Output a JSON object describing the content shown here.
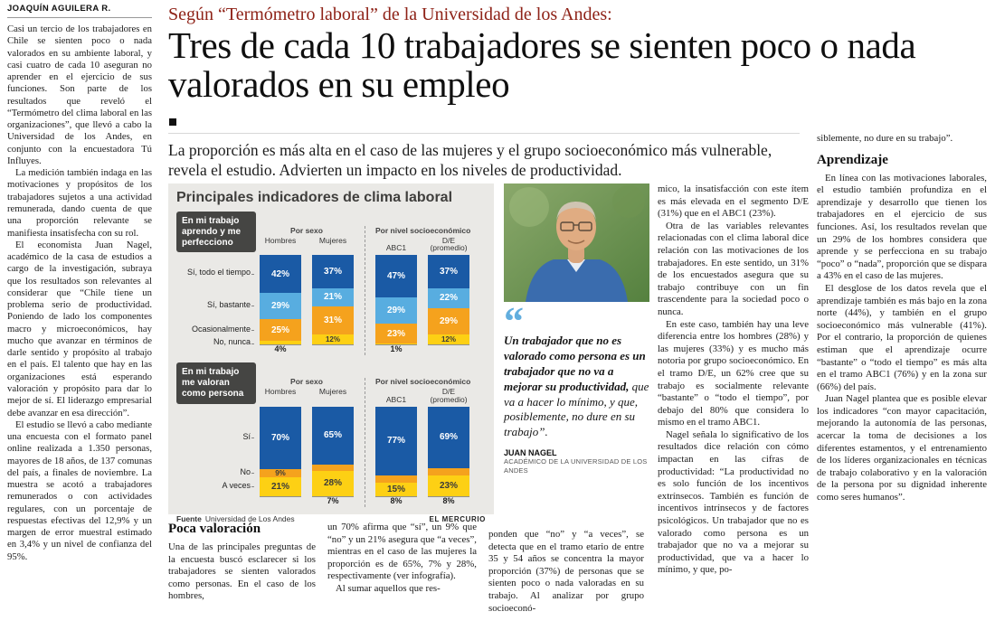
{
  "masthead": {
    "byline": "JOAQUÍN AGUILERA R."
  },
  "header": {
    "kicker": "Según “Termómetro laboral” de la Universidad de los Andes:",
    "headline": "Tres de cada 10 trabajadores se sienten poco o nada valorados en su empleo",
    "subhead": "La proporción es más alta en el caso de las mujeres y el grupo socioeconómico más vulnerable, revela el estudio. Advierten un impacto en los niveles de productividad."
  },
  "left_column": {
    "paragraphs": [
      "Casi un tercio de los trabajadores en Chile se sienten poco o nada valorados en su ambiente laboral, y casi cuatro de cada 10 aseguran no aprender en el ejercicio de sus funciones. Son parte de los resultados que reveló el “Termómetro del clima laboral en las organizaciones”, que llevó a cabo la Universidad de los Andes, en conjunto con la encuestadora Tú Influyes.",
      "La medición también indaga en las motivaciones y propósitos de los trabajadores sujetos a una actividad remunerada, dando cuenta de que una proporción relevante se manifiesta insatisfecha con su rol.",
      "El economista Juan Nagel, académico de la casa de estudios a cargo de la investigación, subraya que los resultados son relevantes al considerar que “Chile tiene un problema serio de productividad. Poniendo de lado los componentes macro y microeconómicos, hay mucho que avanzar en términos de darle sentido y propósito al trabajo en el país. El talento que hay en las organizaciones está esperando valoración y propósito para dar lo mejor de sí. El liderazgo empresarial debe avanzar en esa dirección”.",
      "El estudio se llevó a cabo mediante una encuesta con el formato panel online realizada a 1.350 personas, mayores de 18 años, de 137 comunas del país, a finales de noviembre. La muestra se acotó a trabajadores remunerados o con actividades regulares, con un porcentaje de respuestas efectivas del 12,9% y un margen de error muestral estimado en 3,4% y un nivel de confianza del 95%."
    ]
  },
  "chart_data": {
    "type": "stacked-bar",
    "unit": "%",
    "title": "Principales indicadores de clima laboral",
    "source_label": "Fuente",
    "source": "Universidad de Los Andes",
    "credit": "EL MERCURIO",
    "super_columns": [
      "Por sexo",
      "Por nivel socioeconómico"
    ],
    "bar_columns": [
      [
        "Hombres",
        "Mujeres"
      ],
      [
        "ABC1",
        "D/E (promedio)"
      ]
    ],
    "groups": [
      {
        "header": "En mi trabajo aprendo y me perfecciono",
        "categories": [
          "Sí, todo el tiempo",
          "Sí, bastante",
          "Ocasionalmente",
          "No, nunca"
        ],
        "colors": [
          "#1a5aa5",
          "#58ade0",
          "#f5a21d",
          "#fdd014"
        ],
        "label_colors": [
          "#ffffff",
          "#ffffff",
          "#ffffff",
          "#3a3a3a"
        ],
        "series": [
          {
            "name": "Hombres",
            "values": [
              42,
              29,
              25,
              4
            ]
          },
          {
            "name": "Mujeres",
            "values": [
              37,
              21,
              31,
              12
            ]
          },
          {
            "name": "ABC1",
            "values": [
              47,
              29,
              23,
              1
            ]
          },
          {
            "name": "D/E (promedio)",
            "values": [
              37,
              22,
              29,
              12
            ]
          }
        ]
      },
      {
        "header": "En mi trabajo me valoran como persona",
        "categories": [
          "Sí",
          "No",
          "A veces"
        ],
        "colors": [
          "#1a5aa5",
          "#f5a21d",
          "#fdd014"
        ],
        "label_colors": [
          "#ffffff",
          "#3a3a3a",
          "#3a3a3a"
        ],
        "series": [
          {
            "name": "Hombres",
            "values": [
              70,
              9,
              21
            ]
          },
          {
            "name": "Mujeres",
            "values": [
              65,
              7,
              28
            ]
          },
          {
            "name": "ABC1",
            "values": [
              77,
              8,
              15
            ]
          },
          {
            "name": "D/E (promedio)",
            "values": [
              69,
              8,
              23
            ]
          }
        ]
      }
    ]
  },
  "quote": {
    "mark": "“",
    "bold_text": "Un trabajador que no es valorado como persona es un trabajador que no va a mejorar su productividad,",
    "regular_text": " que va a hacer lo mínimo, y que, posiblemente, no dure en su trabajo”.",
    "author": "JUAN NAGEL",
    "author_title": "ACADÉMICO DE LA UNIVERSIDAD DE LOS ANDES"
  },
  "poca_valoracion": {
    "heading": "Poca valoración",
    "col1_paragraphs": [
      "Una de las principales preguntas de la encuesta buscó esclarecer si los trabajadores se sienten valorados como personas. En el caso de los hombres,"
    ],
    "col2_paragraphs": [
      "un 70% afirma que “sí”, un 9% que “no” y un 21% asegura que “a veces”, mientras en el caso de las mujeres la proporción es de 65%, 7% y 28%, respectivamente (ver infografía).",
      "Al sumar aquellos que res-"
    ],
    "col3_paragraphs": [
      "ponden que “no” y “a veces”, se detecta que en el tramo etario de entre 35 y 54 años se concentra la mayor proporción (37%) de personas que se sienten poco o nada valoradas en su trabajo. Al analizar por grupo socioeconó-"
    ]
  },
  "mid_column": {
    "paragraphs": [
      "mico, la insatisfacción con este ítem es más elevada en el segmento D/E (31%) que en el ABC1 (23%).",
      "Otra de las variables relevantes relacionadas con el clima laboral dice relación con las motivaciones de los trabajadores. En este sentido, un 31% de los encuestados asegura que su trabajo contribuye con un fin trascendente para la sociedad poco o nunca.",
      "En este caso, también hay una leve diferencia entre los hombres (28%) y las mujeres (33%) y es mucho más notoria por grupo socioeconómico. En el tramo D/E, un 62% cree que su trabajo es socialmente relevante “bastante” o “todo el tiempo”, por debajo del 80% que considera lo mismo en el tramo ABC1.",
      "Nagel señala lo significativo de los resultados dice relación con cómo impactan en las cifras de productividad: “La productividad no es solo función de los incentivos extrínsecos. También es función de incentivos intrínsecos y de factores psicológicos. Un trabajador que no es valorado como persona es un trabajador que no va a mejorar su productividad, que va a hacer lo mínimo, y que, po-"
    ]
  },
  "right_column": {
    "lead_paragraph": "siblemente, no dure en su trabajo”.",
    "heading": "Aprendizaje",
    "paragraphs": [
      "En línea con las motivaciones laborales, el estudio también profundiza en el aprendizaje y desarrollo que tienen los trabajadores en el ejercicio de sus funciones. Así, los resultados revelan que un 29% de los hombres considera que aprende y se perfecciona en su trabajo “poco” o “nada”, proporción que se dispara a 43% en el caso de las mujeres.",
      "El desglose de los datos revela que el aprendizaje también es más bajo en la zona norte (44%), y también en el grupo socioeconómico más vulnerable (41%). Por el contrario, la proporción de quienes estiman que el aprendizaje ocurre “bastante” o “todo el tiempo” es más alta en el tramo ABC1 (76%) y en la zona sur (66%) del país.",
      "Juan Nagel plantea que es posible elevar los indicadores “con mayor capacitación, mejorando la autonomía de las personas, acercar la toma de decisiones a los diferentes estamentos, y el entrenamiento de los líderes organizacionales en técnicas de trabajo colaborativo y en la valoración de la persona por su dignidad inherente como seres humanos”."
    ]
  }
}
